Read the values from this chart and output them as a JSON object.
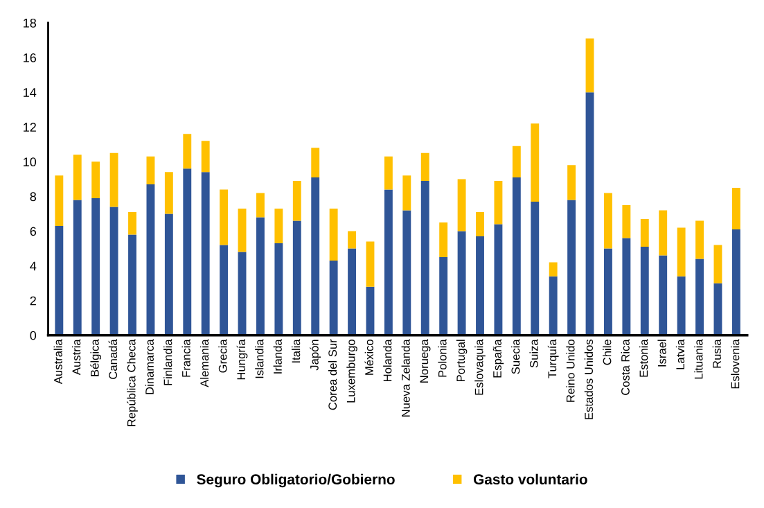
{
  "chart_data": {
    "type": "bar",
    "stacked": true,
    "categories": [
      "Australia",
      "Austria",
      "Bélgica",
      "Canadá",
      "República Checa",
      "Dinamarca",
      "Finlandia",
      "Francia",
      "Alemania",
      "Grecia",
      "Hungría",
      "Islandia",
      "Irlanda",
      "Italia",
      "Japón",
      "Corea del Sur",
      "Luxemburgo",
      "México",
      "Holanda",
      "Nueva Zelanda",
      "Noruega",
      "Polonia",
      "Portugal",
      "Eslovaquia",
      "España",
      "Suecia",
      "Suiza",
      "Turquía",
      "Reino Unido",
      "Estados Unidos",
      "Chile",
      "Costa Rica",
      "Estonia",
      "Israel",
      "Latvia",
      "Lituania",
      "Rusia",
      "Eslovenia"
    ],
    "series": [
      {
        "name": "Seguro Obligatorio/Gobierno",
        "color": "#2f5597",
        "values": [
          6.3,
          7.8,
          7.9,
          7.4,
          5.8,
          8.7,
          7.0,
          9.6,
          9.4,
          5.2,
          4.8,
          6.8,
          5.3,
          6.6,
          9.1,
          4.3,
          5.0,
          2.8,
          8.4,
          7.2,
          8.9,
          4.5,
          6.0,
          5.7,
          6.4,
          9.1,
          7.7,
          3.4,
          7.8,
          14.0,
          5.0,
          5.6,
          5.1,
          4.6,
          3.4,
          4.4,
          3.0,
          6.1
        ]
      },
      {
        "name": "Gasto voluntario",
        "color": "#ffc000",
        "values": [
          2.9,
          2.6,
          2.1,
          3.1,
          1.3,
          1.6,
          2.4,
          2.0,
          1.8,
          3.2,
          2.5,
          1.4,
          2.0,
          2.3,
          1.7,
          3.0,
          1.0,
          2.6,
          1.9,
          2.0,
          1.6,
          2.0,
          3.0,
          1.4,
          2.5,
          1.8,
          4.5,
          0.8,
          2.0,
          3.1,
          3.2,
          1.9,
          1.6,
          2.6,
          2.8,
          2.2,
          2.2,
          2.4
        ]
      }
    ],
    "ylim": [
      0,
      18
    ],
    "yticks": [
      0,
      2,
      4,
      6,
      8,
      10,
      12,
      14,
      16,
      18
    ],
    "grid": false,
    "legend": "bottom"
  }
}
